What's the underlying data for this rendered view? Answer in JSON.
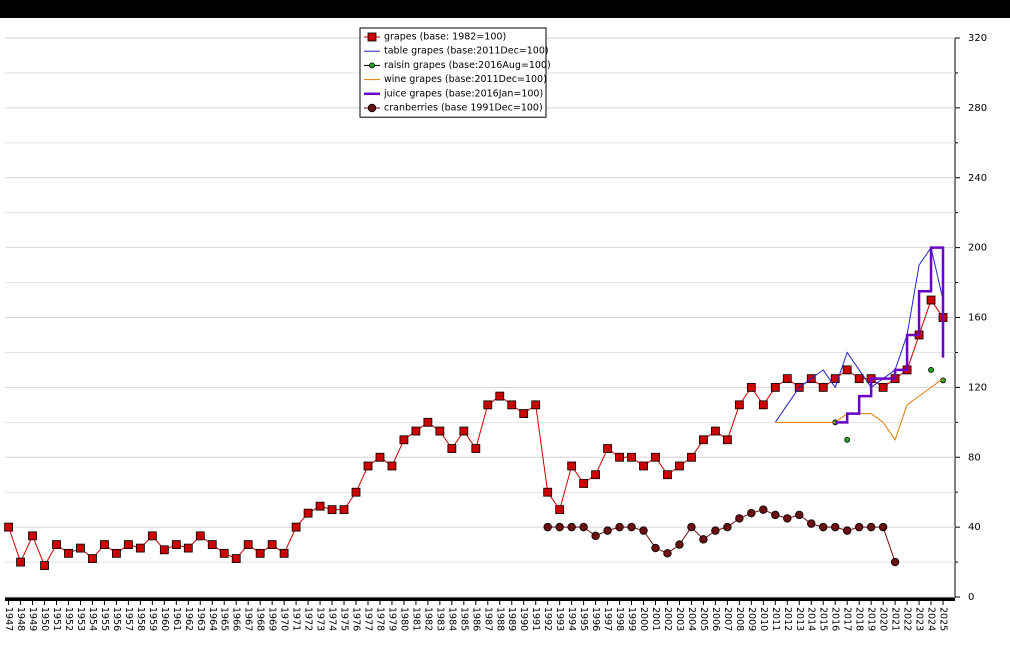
{
  "chart_data": {
    "type": "line",
    "legend": "top-center",
    "grid": true,
    "xlim": [
      1946.7,
      2026
    ],
    "ylim": [
      0,
      320
    ],
    "yticks": [
      0,
      40,
      80,
      120,
      160,
      200,
      240,
      280,
      320
    ],
    "minor_yticks": [
      20,
      60,
      100,
      140,
      180,
      220,
      260,
      300
    ],
    "xticks": [
      1947,
      1948,
      1949,
      1950,
      1951,
      1952,
      1953,
      1954,
      1955,
      1956,
      1957,
      1958,
      1959,
      1960,
      1961,
      1962,
      1963,
      1964,
      1965,
      1966,
      1967,
      1968,
      1969,
      1970,
      1971,
      1972,
      1973,
      1974,
      1975,
      1976,
      1977,
      1978,
      1979,
      1980,
      1981,
      1982,
      1983,
      1984,
      1985,
      1986,
      1987,
      1988,
      1989,
      1990,
      1991,
      1992,
      1993,
      1994,
      1995,
      1996,
      1997,
      1998,
      1999,
      2000,
      2001,
      2002,
      2003,
      2004,
      2005,
      2006,
      2007,
      2008,
      2009,
      2010,
      2011,
      2012,
      2013,
      2014,
      2015,
      2016,
      2017,
      2018,
      2019,
      2020,
      2021,
      2022,
      2023,
      2024,
      2025
    ],
    "series": [
      {
        "name": "grapes (base: 1982=100)",
        "color": "#cc0000",
        "marker": "square",
        "line_width": 1,
        "x": [
          1947,
          1948,
          1949,
          1950,
          1951,
          1952,
          1953,
          1954,
          1955,
          1956,
          1957,
          1958,
          1959,
          1960,
          1961,
          1962,
          1963,
          1964,
          1965,
          1966,
          1967,
          1968,
          1969,
          1970,
          1971,
          1972,
          1973,
          1974,
          1975,
          1976,
          1977,
          1978,
          1979,
          1980,
          1981,
          1982,
          1983,
          1984,
          1985,
          1986,
          1987,
          1988,
          1989,
          1990,
          1991,
          1992,
          1993,
          1994,
          1995,
          1996,
          1997,
          1998,
          1999,
          2000,
          2001,
          2002,
          2003,
          2004,
          2005,
          2006,
          2007,
          2008,
          2009,
          2010,
          2011,
          2012,
          2013,
          2014,
          2015,
          2016,
          2017,
          2018,
          2019,
          2020,
          2021,
          2022,
          2023,
          2024,
          2025
        ],
        "values": [
          40,
          20,
          35,
          18,
          30,
          25,
          28,
          22,
          30,
          25,
          30,
          28,
          35,
          27,
          30,
          28,
          35,
          30,
          25,
          22,
          30,
          25,
          30,
          25,
          40,
          48,
          52,
          50,
          50,
          60,
          75,
          80,
          75,
          90,
          95,
          100,
          95,
          85,
          95,
          85,
          110,
          115,
          110,
          105,
          110,
          60,
          50,
          75,
          65,
          70,
          85,
          80,
          80,
          75,
          80,
          70,
          75,
          80,
          90,
          95,
          90,
          110,
          120,
          110,
          120,
          125,
          120,
          125,
          120,
          125,
          130,
          125,
          125,
          120,
          125,
          130,
          150,
          170,
          160
        ]
      },
      {
        "name": "table grapes (base:2011Dec=100)",
        "color": "#2222cc",
        "marker": "none",
        "line_width": 1,
        "x": [
          2011,
          2012,
          2013,
          2014,
          2015,
          2016,
          2017,
          2018,
          2019,
          2020,
          2021,
          2022,
          2023,
          2024,
          2025
        ],
        "values": [
          100,
          110,
          120,
          125,
          130,
          120,
          140,
          130,
          120,
          125,
          130,
          150,
          190,
          200,
          170
        ]
      },
      {
        "name": "raisin grapes (base:2016Aug=100)",
        "color": "#22aa22",
        "marker": "circle-small",
        "line_width": 0,
        "x": [
          2016,
          2017,
          2024,
          2025
        ],
        "values": [
          100,
          90,
          130,
          124
        ]
      },
      {
        "name": "wine grapes (base:2011Dec=100)",
        "color": "#e07b00",
        "marker": "none",
        "line_width": 1,
        "x": [
          2011,
          2012,
          2013,
          2014,
          2015,
          2016,
          2017,
          2018,
          2019,
          2020,
          2021,
          2022,
          2023,
          2024,
          2025
        ],
        "values": [
          100,
          100,
          100,
          100,
          100,
          100,
          105,
          105,
          105,
          100,
          90,
          110,
          115,
          120,
          125
        ]
      },
      {
        "name": "juice grapes (base:2016Jan=100)",
        "color": "#6a00c8",
        "marker": "none",
        "line_width": 2.5,
        "step": true,
        "x": [
          2016,
          2017,
          2018,
          2019,
          2020,
          2021,
          2022,
          2023,
          2024,
          2025
        ],
        "values": [
          100,
          105,
          115,
          125,
          125,
          130,
          150,
          175,
          200,
          137
        ]
      },
      {
        "name": "cranberries (base 1991Dec=100)",
        "color": "#6b1010",
        "marker": "circle",
        "line_width": 1,
        "x": [
          1992,
          1993,
          1994,
          1995,
          1996,
          1997,
          1998,
          1999,
          2000,
          2001,
          2002,
          2003,
          2004,
          2005,
          2006,
          2007,
          2008,
          2009,
          2010,
          2011,
          2012,
          2013,
          2014,
          2015,
          2016,
          2017,
          2018,
          2019,
          2020,
          2021
        ],
        "values": [
          40,
          40,
          40,
          40,
          35,
          38,
          40,
          40,
          38,
          28,
          25,
          30,
          40,
          33,
          38,
          40,
          45,
          48,
          50,
          47,
          45,
          47,
          42,
          40,
          40,
          38,
          40,
          40,
          40,
          20
        ]
      }
    ]
  }
}
